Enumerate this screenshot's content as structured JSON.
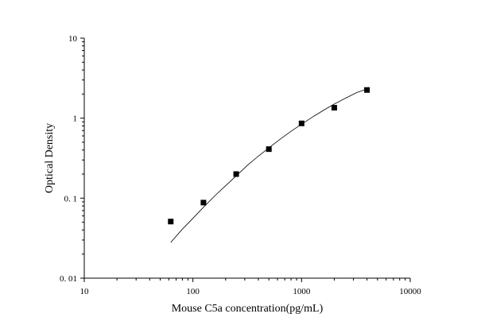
{
  "chart_data": {
    "type": "scatter",
    "title": "",
    "xlabel": "Mouse C5a concentration(pg/mL)",
    "ylabel": "Optical Density",
    "x_scale": "log",
    "y_scale": "log",
    "xlim": [
      10,
      10000
    ],
    "ylim": [
      0.01,
      10
    ],
    "x_ticks": [
      10,
      100,
      1000,
      10000
    ],
    "x_tick_labels": [
      "10",
      "100",
      "1000",
      "10000"
    ],
    "y_ticks": [
      0.01,
      0.1,
      1,
      10
    ],
    "y_tick_labels": [
      "0. 01",
      "0. 1",
      "1",
      "10"
    ],
    "grid": false,
    "legend": "none",
    "marker_color": "#000000",
    "series": [
      {
        "x": [
          62.5,
          125,
          250,
          500,
          1000,
          2000,
          4000
        ],
        "y": [
          0.051,
          0.088,
          0.2,
          0.41,
          0.86,
          1.35,
          2.25
        ]
      }
    ],
    "fit_curve": {
      "x": [
        62.5,
        80,
        100,
        125,
        160,
        200,
        250,
        320,
        400,
        500,
        640,
        800,
        1000,
        1300,
        1600,
        2000,
        2500,
        3200,
        4000
      ],
      "y": [
        0.028,
        0.041,
        0.056,
        0.077,
        0.108,
        0.143,
        0.19,
        0.26,
        0.335,
        0.425,
        0.55,
        0.685,
        0.84,
        1.06,
        1.26,
        1.5,
        1.76,
        2.08,
        2.32
      ]
    }
  }
}
